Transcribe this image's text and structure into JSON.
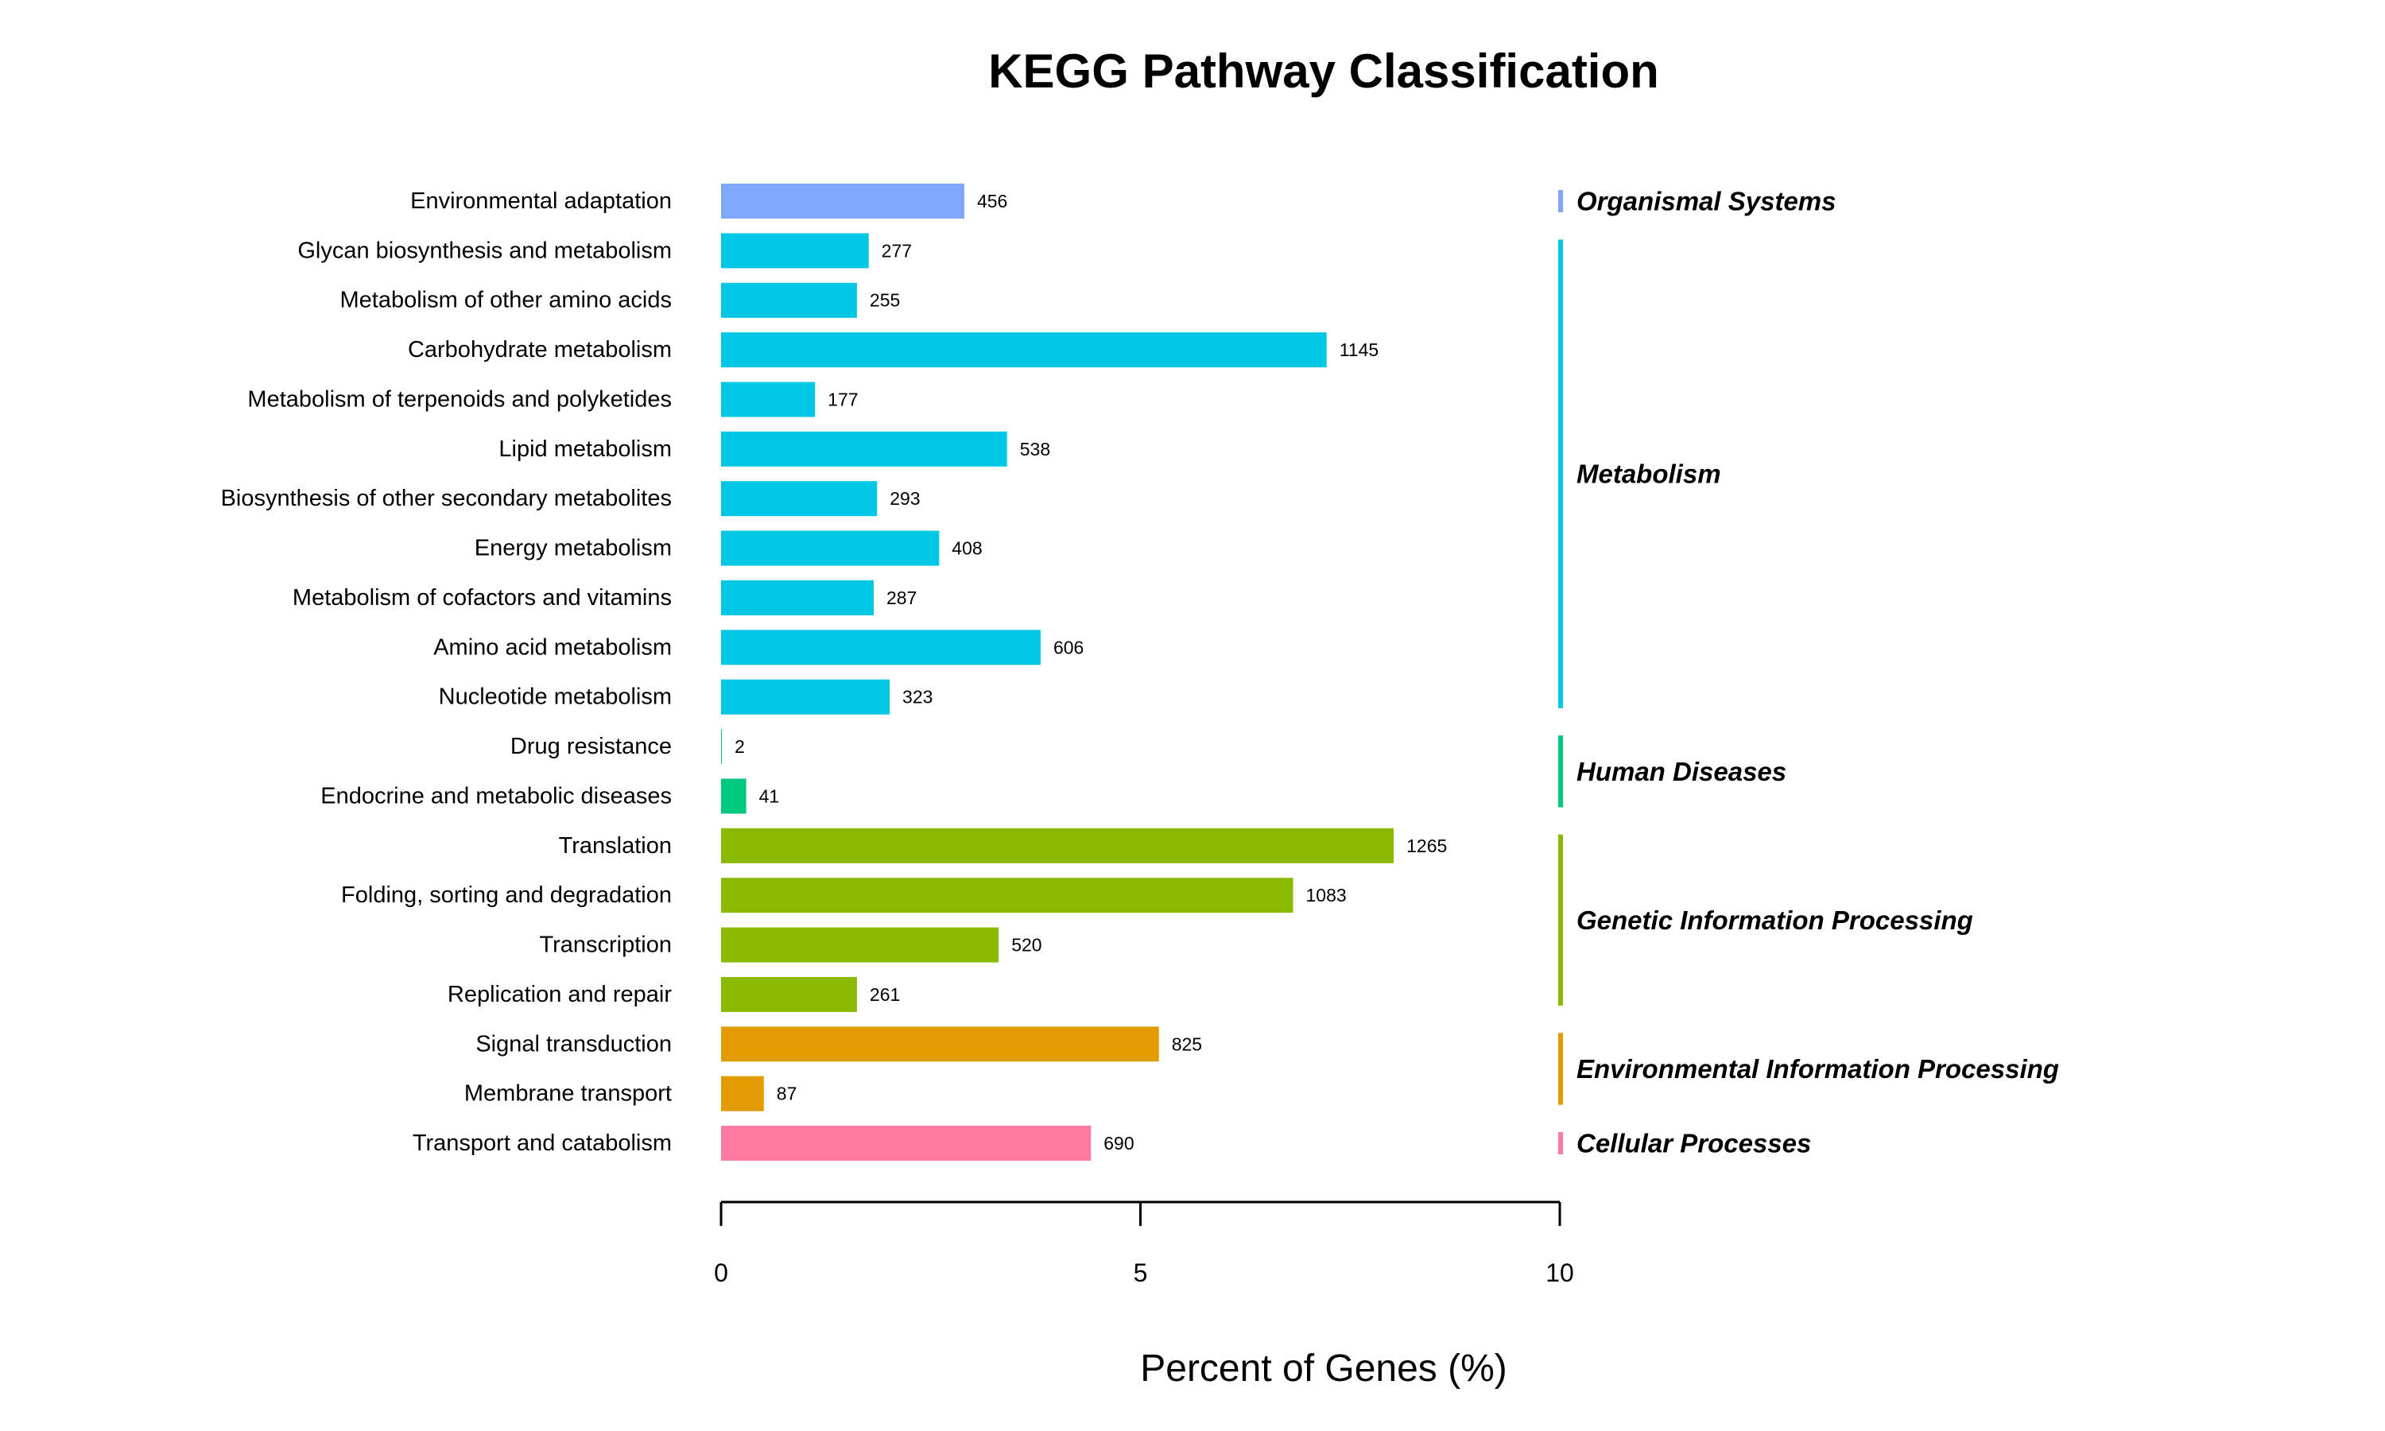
{
  "chart_data": {
    "type": "bar",
    "orientation": "horizontal",
    "title": "KEGG Pathway Classification",
    "xlabel": "Percent of Genes (%)",
    "ylabel": "",
    "xlim": [
      0,
      10
    ],
    "xticks": [
      "0",
      "5",
      "10"
    ],
    "grid": false,
    "categories": [
      "Environmental adaptation",
      "Glycan biosynthesis and metabolism",
      "Metabolism of other amino acids",
      "Carbohydrate metabolism",
      "Metabolism of terpenoids and polyketides",
      "Lipid metabolism",
      "Biosynthesis of other secondary metabolites",
      "Energy metabolism",
      "Metabolism of cofactors and vitamins",
      "Amino acid metabolism",
      "Nucleotide metabolism",
      "Drug resistance",
      "Endocrine and metabolic diseases",
      "Translation",
      "Folding, sorting and degradation",
      "Transcription",
      "Replication and repair",
      "Signal transduction",
      "Membrane transport",
      "Transport and catabolism"
    ],
    "values": [
      2.9,
      1.76,
      1.62,
      7.22,
      1.12,
      3.41,
      1.86,
      2.6,
      1.82,
      3.81,
      2.01,
      0.01,
      0.3,
      8.02,
      6.82,
      3.31,
      1.62,
      5.22,
      0.51,
      4.41
    ],
    "counts": [
      "456",
      "277",
      "255",
      "1145",
      "177",
      "538",
      "293",
      "408",
      "287",
      "606",
      "323",
      "2",
      "41",
      "1265",
      "1083",
      "520",
      "261",
      "825",
      "87",
      "690"
    ],
    "groups": [
      {
        "name": "Organismal Systems",
        "start": 0,
        "end": 0,
        "color": "#7fa7fb"
      },
      {
        "name": "Metabolism",
        "start": 1,
        "end": 10,
        "color": "#00c8e4"
      },
      {
        "name": "Human Diseases",
        "start": 11,
        "end": 12,
        "color": "#00c880"
      },
      {
        "name": "Genetic Information Processing",
        "start": 13,
        "end": 16,
        "color": "#8ab900"
      },
      {
        "name": "Environmental Information Processing",
        "start": 17,
        "end": 18,
        "color": "#e39c00"
      },
      {
        "name": "Cellular Processes",
        "start": 19,
        "end": 19,
        "color": "#ff7aa0"
      }
    ]
  }
}
